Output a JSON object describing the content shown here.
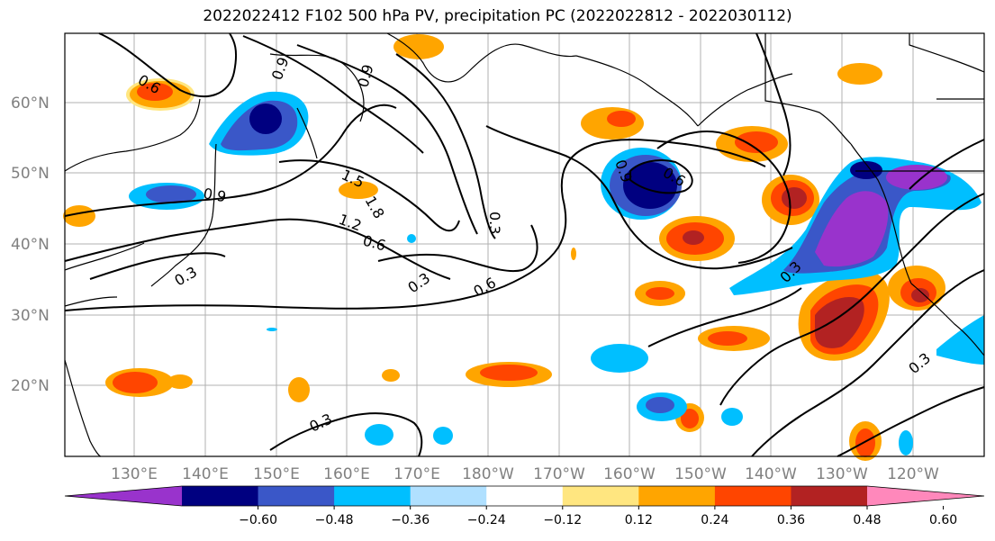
{
  "title": "2022022412 F102 500 hPa PV, precipitation PC (2022022812 - 2022030112)",
  "lat_labels": [
    "60°N",
    "50°N",
    "40°N",
    "30°N",
    "20°N"
  ],
  "lon_labels": [
    "130°E",
    "140°E",
    "150°E",
    "160°E",
    "170°E",
    "180°W",
    "170°W",
    "160°W",
    "150°W",
    "140°W",
    "130°W",
    "120°W"
  ],
  "contour_labels": [
    "0.6",
    "0.9",
    "0.9",
    "1.5",
    "1.8",
    "1.2",
    "0.6",
    "0.9",
    "0.3",
    "0.6",
    "0.3",
    "0.6",
    "0.3",
    "0.9",
    "0.3",
    "0.3",
    "0.3"
  ],
  "colorbar": {
    "colors": [
      "#9933cc",
      "#000080",
      "#3a57c8",
      "#00bfff",
      "#b0e0ff",
      "#ffffff",
      "#ffe680",
      "#ffa500",
      "#ff4500",
      "#b22222",
      "#ff88bb"
    ],
    "tick_labels": [
      "−0.60",
      "−0.48",
      "−0.36",
      "−0.24",
      "−0.12",
      "0.12",
      "0.24",
      "0.36",
      "0.48",
      "0.60"
    ]
  },
  "colors": {
    "pos_low": "#ffe680",
    "pos_mid": "#ffa500",
    "pos_high": "#ff4500",
    "pos_max": "#b22222",
    "neg_low": "#00bfff",
    "neg_mid": "#3a57c8",
    "neg_high": "#000080",
    "neg_max": "#9933cc"
  }
}
